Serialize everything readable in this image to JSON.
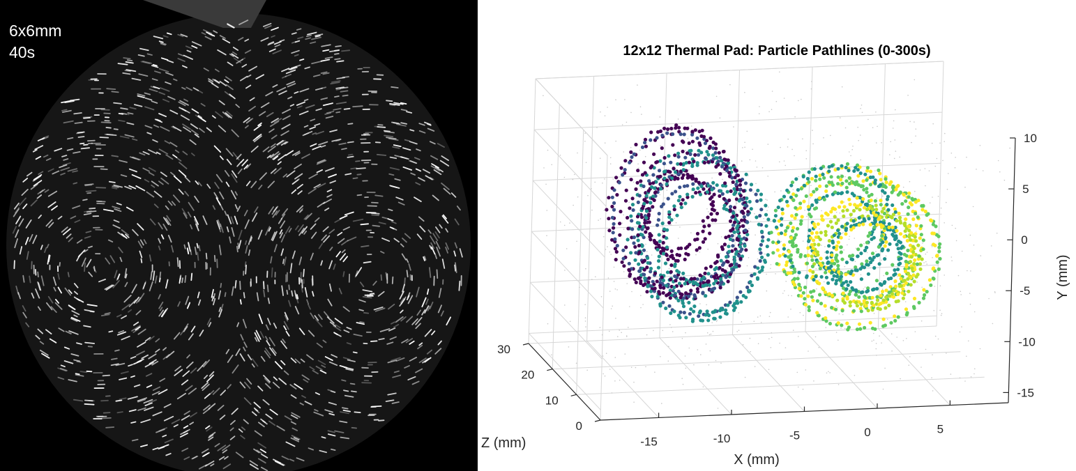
{
  "photo": {
    "caption_size": "6x6mm",
    "caption_time": "40s",
    "background": "#000000",
    "streak_color": "#ffffff"
  },
  "chart_data": {
    "type": "scatter",
    "title": "12x12 Thermal Pad: Particle Pathlines (0-300s)",
    "xlabel": "X (mm)",
    "ylabel": "Y (mm)",
    "zlabel": "Z (mm)",
    "xlim": [
      -19,
      9
    ],
    "ylim": [
      -16,
      10
    ],
    "zlim": [
      0,
      30
    ],
    "x_ticks": [
      -15,
      -10,
      -5,
      0,
      5
    ],
    "y_ticks": [
      10,
      5,
      0,
      -5,
      -10,
      -15
    ],
    "z_ticks": [
      30,
      20,
      10,
      0
    ],
    "grid": true,
    "colormap": "viridis",
    "colormap_colors": [
      "#440154",
      "#3b528b",
      "#21918c",
      "#5ec962",
      "#b5de2b",
      "#fde725"
    ],
    "vortices": [
      {
        "name": "left vortex",
        "center_x": -10.5,
        "center_y": -1.5,
        "radius_x": 4.5,
        "radius_y": 8.0
      },
      {
        "name": "right vortex",
        "center_x": 0.5,
        "center_y": -3.5,
        "radius_x": 5.0,
        "radius_y": 7.0
      }
    ]
  }
}
